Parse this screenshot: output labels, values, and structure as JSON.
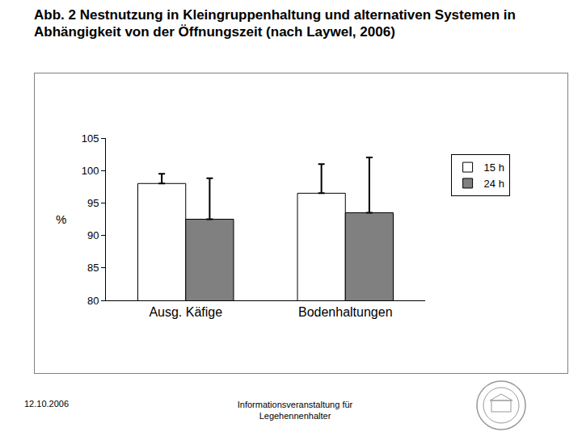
{
  "chart_data": {
    "type": "bar",
    "title": "Abb. 2 Nestnutzung in Kleingruppenhaltung und alternativen Systemen in Abhängigkeit von der Öffnungszeit (nach Laywel, 2006)",
    "y_label": "%",
    "categories": [
      "Ausg. Käfige",
      "Bodenhaltungen"
    ],
    "series": [
      {
        "name": "15 h",
        "color": "#ffffff",
        "values": [
          98,
          96.5
        ],
        "error": [
          1.5,
          4.5
        ]
      },
      {
        "name": "24 h",
        "color": "#808080",
        "values": [
          92.5,
          93.5
        ],
        "error": [
          6.3,
          8.5
        ]
      }
    ],
    "ylim": [
      80,
      105
    ],
    "yticks": [
      80,
      85,
      90,
      95,
      100,
      105
    ],
    "grid": false,
    "legend": "right"
  },
  "footer": {
    "date": "12.10.2006",
    "text": [
      "Informationsveranstaltung für",
      "Legehennenhalter"
    ]
  }
}
